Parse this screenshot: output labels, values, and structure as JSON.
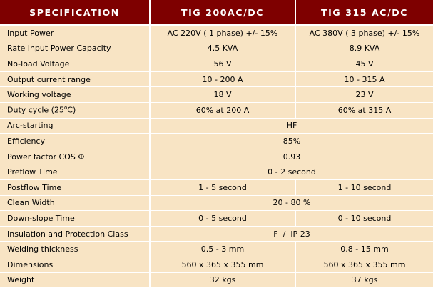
{
  "header": {
    "col_spec": "SPECIFICATION",
    "col_a": "TIG 200AC/DC",
    "col_b": "TIG 315 AC/DC"
  },
  "rows": [
    {
      "label": "Input Power",
      "a": "AC 220V ( 1 phase) +/- 15%",
      "b": "AC 380V ( 3 phase) +/- 15%"
    },
    {
      "label": "Rate Input Power Capacity",
      "a": "4.5 KVA",
      "b": "8.9 KVA"
    },
    {
      "label": "No-load Voltage",
      "a": "56 V",
      "b": "45 V"
    },
    {
      "label": "Output current range",
      "a": "10 - 200 A",
      "b": "10 - 315 A"
    },
    {
      "label": "Working voltage",
      "a": "18 V",
      "b": "23 V"
    },
    {
      "label_prefix": "Duty cycle (25",
      "label_sup": "o",
      "label_suffix": "C)",
      "a": "60% at 200 A",
      "b": "60% at 315 A"
    },
    {
      "label": "Arc-starting",
      "merged": "HF"
    },
    {
      "label": "Efficiency",
      "merged": "85%"
    },
    {
      "label": "Power factor COS",
      "label_symbol": "Φ",
      "merged": "0.93"
    },
    {
      "label": "Preflow Time",
      "merged": "0 - 2 second"
    },
    {
      "label": "Postflow Time",
      "a": "1 - 5 second",
      "b": "1 - 10 second"
    },
    {
      "label": "Clean Width",
      "merged": "20 - 80 %"
    },
    {
      "label": "Down-slope Time",
      "a": "0 - 5 second",
      "b": "0 - 10 second"
    },
    {
      "label": "Insulation and Protection Class",
      "merged": "F  /  IP 23"
    },
    {
      "label": "Welding thickness",
      "a": "0.5 - 3 mm",
      "b": "0.8 - 15 mm"
    },
    {
      "label": "Dimensions",
      "a": "560 x 365 x 355 mm",
      "b": "560 x 365 x 355 mm"
    },
    {
      "label": "Weight",
      "a": "32 kgs",
      "b": "37 kgs"
    }
  ],
  "colors": {
    "header_bg": "#7e0000",
    "header_text": "#ffffff",
    "cell_bg": "#f8e4c4",
    "divider": "#ffffff"
  }
}
